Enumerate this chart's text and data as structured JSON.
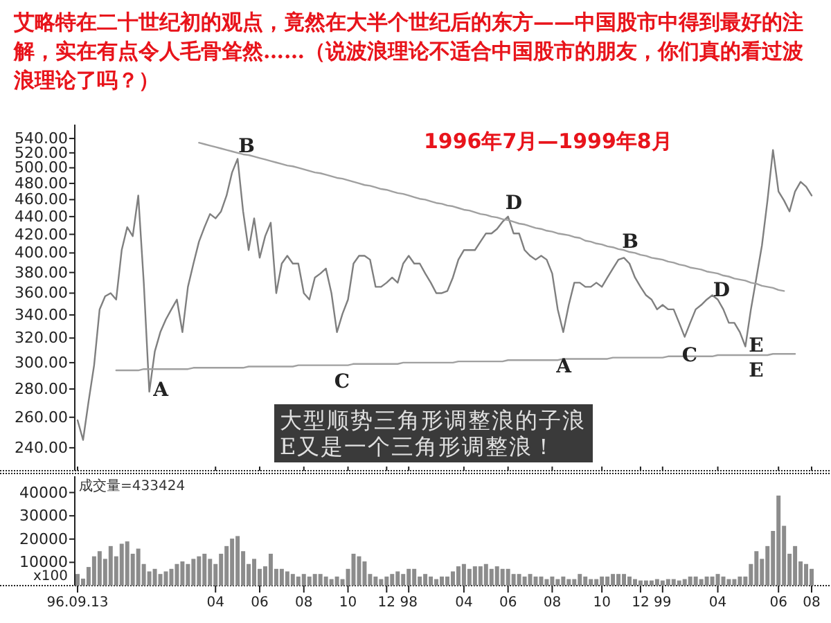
{
  "chart_data": [
    {
      "type": "line",
      "title": "艾略特在二十世纪初的观点，竟然在大半个世纪后的东方——中国股市中得到最好的注解，实在有点令人毛骨耸然……（说波浪理论不适合中国股市的朋友，你们真的看过波浪理论了吗？）",
      "subtitle": "1996年7月—1999年8月",
      "categories": [
        "96.09.13",
        null,
        null,
        null,
        null,
        null,
        null,
        null,
        null,
        null,
        null,
        null,
        null,
        null,
        null,
        null,
        null,
        null,
        null,
        null,
        null,
        null,
        null,
        null,
        null,
        "04",
        null,
        null,
        null,
        null,
        null,
        null,
        null,
        "06",
        null,
        null,
        null,
        null,
        null,
        null,
        null,
        "08",
        null,
        null,
        null,
        null,
        null,
        null,
        null,
        "10",
        null,
        null,
        null,
        null,
        null,
        null,
        "12",
        null,
        null,
        null,
        "98",
        null,
        null,
        null,
        null,
        null,
        null,
        null,
        null,
        null,
        "04",
        null,
        null,
        null,
        null,
        null,
        null,
        null,
        "06",
        null,
        null,
        null,
        null,
        null,
        null,
        null,
        "08",
        null,
        null,
        null,
        null,
        null,
        null,
        null,
        null,
        "10",
        null,
        null,
        null,
        null,
        null,
        null,
        "12",
        null,
        null,
        null,
        "99",
        null,
        null,
        null,
        null,
        null,
        null,
        null,
        null,
        null,
        "04",
        null,
        null,
        null,
        null,
        null,
        null,
        null,
        null,
        null,
        null,
        "06",
        null,
        null,
        null,
        null,
        null,
        "08"
      ],
      "ylim": [
        226,
        560
      ],
      "log": true,
      "yticks": [
        {
          "value": 240,
          "label": "240.00"
        },
        {
          "value": 260,
          "label": "260.00"
        },
        {
          "value": 280,
          "label": "280.00"
        },
        {
          "value": 300,
          "label": "300.00"
        },
        {
          "value": 320,
          "label": "320.00"
        },
        {
          "value": 340,
          "label": "340.00"
        },
        {
          "value": 360,
          "label": "360.00"
        },
        {
          "value": 380,
          "label": "380.00"
        },
        {
          "value": 400,
          "label": "400.00"
        },
        {
          "value": 420,
          "label": "420.00"
        },
        {
          "value": 440,
          "label": "440.00"
        },
        {
          "value": 460,
          "label": "460.00"
        },
        {
          "value": 480,
          "label": "480.00"
        },
        {
          "value": 500,
          "label": "500.00"
        },
        {
          "value": 520,
          "label": "520.00"
        },
        {
          "value": 540,
          "label": "540.00"
        }
      ],
      "tick_labels": "y",
      "grid": false,
      "series": [
        {
          "color": "#7f7f7f",
          "values": [
            258,
            245,
            271,
            298,
            345,
            357,
            360,
            354,
            403,
            428,
            418,
            465,
            370,
            278,
            309,
            325,
            336,
            345,
            354,
            325,
            366,
            389,
            412,
            428,
            443,
            438,
            446,
            465,
            494,
            512,
            446,
            403,
            438,
            395,
            418,
            433,
            360,
            389,
            397,
            389,
            389,
            360,
            354,
            375,
            379,
            384,
            360,
            325,
            341,
            354,
            389,
            397,
            397,
            393,
            366,
            366,
            370,
            375,
            370,
            389,
            397,
            389,
            389,
            379,
            370,
            360,
            360,
            362,
            375,
            393,
            403,
            403,
            403,
            412,
            421,
            421,
            426,
            434,
            440,
            421,
            421,
            403,
            397,
            393,
            397,
            393,
            379,
            345,
            325,
            349,
            370,
            370,
            366,
            366,
            370,
            366,
            375,
            384,
            393,
            395,
            389,
            375,
            366,
            358,
            354,
            345,
            349,
            345,
            345,
            333,
            321,
            333,
            345,
            349,
            354,
            358,
            354,
            345,
            333,
            333,
            325,
            313,
            345,
            375,
            408,
            459,
            524,
            470,
            459,
            446,
            470,
            482,
            476,
            465
          ]
        },
        {
          "type": "line",
          "color": "#a0a0a0",
          "values": [
            null,
            null,
            null,
            null,
            null,
            null,
            null,
            null,
            null,
            null,
            null,
            null,
            null,
            null,
            null,
            null,
            null,
            null,
            null,
            null,
            null,
            null,
            534,
            532,
            530,
            528,
            526,
            524,
            522,
            520,
            518,
            517,
            515,
            513,
            511,
            509,
            507,
            505,
            503,
            502,
            500,
            498,
            496,
            494,
            493,
            491,
            489,
            487,
            486,
            484,
            482,
            480,
            478,
            477,
            475,
            473,
            472,
            470,
            468,
            467,
            465,
            463,
            461,
            460,
            458,
            456,
            455,
            453,
            452,
            450,
            448,
            447,
            445,
            443,
            442,
            440,
            439,
            437,
            436,
            434,
            432,
            431,
            429,
            427,
            426,
            424,
            423,
            421,
            420,
            419,
            417,
            416,
            413,
            412,
            410,
            409,
            407,
            406,
            404,
            403,
            401,
            400,
            398,
            397,
            395,
            394,
            393,
            391,
            390,
            388,
            387,
            385,
            384,
            383,
            381,
            380,
            379,
            377,
            376,
            374,
            373,
            372,
            370,
            369,
            367,
            366,
            365,
            363,
            362,
            null,
            null,
            null,
            null,
            null
          ]
        },
        {
          "type": "line",
          "color": "#a0a0a0",
          "values": [
            null,
            null,
            null,
            null,
            null,
            null,
            null,
            294,
            294,
            294,
            294,
            294,
            295,
            295,
            295,
            295,
            295,
            295,
            295,
            295,
            295,
            296,
            296,
            296,
            296,
            296,
            296,
            296,
            296,
            296,
            296,
            297,
            297,
            297,
            297,
            297,
            297,
            297,
            297,
            297,
            298,
            298,
            298,
            298,
            298,
            298,
            298,
            298,
            298,
            298,
            299,
            299,
            299,
            299,
            299,
            299,
            299,
            299,
            299,
            300,
            300,
            300,
            300,
            300,
            300,
            300,
            300,
            300,
            300,
            301,
            301,
            301,
            301,
            301,
            301,
            301,
            301,
            301,
            302,
            302,
            302,
            302,
            302,
            302,
            302,
            302,
            302,
            302,
            303,
            303,
            303,
            303,
            303,
            303,
            303,
            303,
            303,
            304,
            304,
            304,
            304,
            304,
            304,
            304,
            304,
            304,
            304,
            305,
            305,
            305,
            305,
            305,
            305,
            305,
            305,
            305,
            306,
            306,
            306,
            306,
            306,
            306,
            306,
            306,
            306,
            306,
            307,
            307,
            307,
            307,
            307,
            null,
            null,
            null
          ]
        }
      ],
      "annotations": [
        "A",
        "B",
        "C",
        "D",
        "A",
        "B",
        "C",
        "D",
        "E",
        "E",
        "大型顺势三角形调整浪的子浪E又是一个三角形调整浪！"
      ]
    },
    {
      "type": "bar",
      "categories": [
        "96.09.13",
        null,
        null,
        null,
        null,
        null,
        null,
        null,
        null,
        null,
        null,
        null,
        null,
        null,
        null,
        null,
        null,
        null,
        null,
        null,
        null,
        null,
        null,
        null,
        null,
        "04",
        null,
        null,
        null,
        null,
        null,
        null,
        null,
        "06",
        null,
        null,
        null,
        null,
        null,
        null,
        null,
        "08",
        null,
        null,
        null,
        null,
        null,
        null,
        null,
        "10",
        null,
        null,
        null,
        null,
        null,
        null,
        "12",
        null,
        null,
        null,
        "98",
        null,
        null,
        null,
        null,
        null,
        null,
        null,
        null,
        null,
        "04",
        null,
        null,
        null,
        null,
        null,
        null,
        null,
        "06",
        null,
        null,
        null,
        null,
        null,
        null,
        null,
        "08",
        null,
        null,
        null,
        null,
        null,
        null,
        null,
        null,
        "10",
        null,
        null,
        null,
        null,
        null,
        null,
        "12",
        null,
        null,
        null,
        "99",
        null,
        null,
        null,
        null,
        null,
        null,
        null,
        null,
        null,
        "04",
        null,
        null,
        null,
        null,
        null,
        null,
        null,
        null,
        null,
        null,
        "06",
        null,
        null,
        null,
        null,
        null,
        "08"
      ],
      "ylim": [
        0,
        47000
      ],
      "yticks": [
        10000,
        20000,
        30000,
        40000
      ],
      "grid": false,
      "series": [
        {
          "color": "#8c8c8c",
          "values": [
            5000,
            3000,
            8000,
            12600,
            14800,
            11500,
            17000,
            12600,
            18000,
            19000,
            13700,
            15900,
            9300,
            6100,
            7200,
            5000,
            6100,
            7200,
            9300,
            10400,
            9300,
            11500,
            12600,
            13700,
            11500,
            9300,
            13700,
            17000,
            20200,
            21300,
            14800,
            9300,
            11500,
            7200,
            8300,
            13700,
            7200,
            7200,
            6100,
            5000,
            3900,
            5000,
            3900,
            5000,
            5000,
            3900,
            2800,
            3900,
            2800,
            7200,
            13700,
            12600,
            10400,
            5000,
            3900,
            2800,
            3900,
            5000,
            6100,
            5000,
            7200,
            7200,
            3900,
            5000,
            3900,
            2800,
            3900,
            3900,
            6100,
            8300,
            9300,
            7200,
            8300,
            8300,
            9300,
            7200,
            8300,
            7200,
            7200,
            5000,
            5000,
            3900,
            5000,
            3900,
            3900,
            2800,
            3900,
            2800,
            3900,
            2800,
            2800,
            5000,
            3900,
            2800,
            2800,
            3900,
            3900,
            5000,
            5000,
            5000,
            3900,
            2800,
            2200,
            2200,
            2200,
            2800,
            2200,
            2800,
            2800,
            2200,
            2800,
            3900,
            3900,
            2800,
            3900,
            3900,
            5000,
            3900,
            2800,
            2800,
            3900,
            3900,
            9300,
            14800,
            11500,
            17000,
            23500,
            38700,
            25700,
            13700,
            17000,
            10400,
            9300,
            7200
          ]
        }
      ],
      "annotations": [
        "成交量=433424",
        "x100"
      ]
    }
  ]
}
